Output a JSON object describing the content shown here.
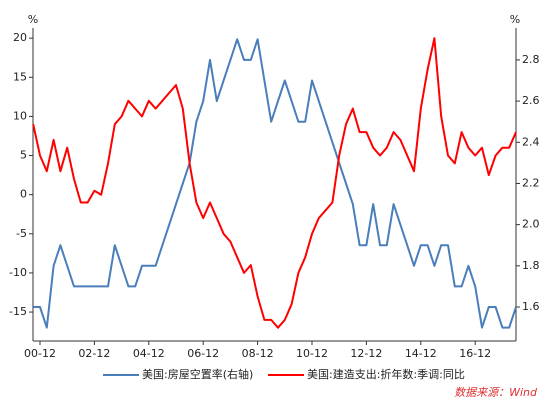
{
  "chart_data": {
    "type": "line",
    "ylabel": "%",
    "y2label": "%",
    "x": [
      "00-09",
      "00-12",
      "01-03",
      "01-06",
      "01-09",
      "01-12",
      "02-03",
      "02-06",
      "02-09",
      "02-12",
      "03-03",
      "03-06",
      "03-09",
      "03-12",
      "04-03",
      "04-06",
      "04-09",
      "04-12",
      "05-03",
      "05-06",
      "05-09",
      "05-12",
      "06-03",
      "06-06",
      "06-09",
      "06-12",
      "07-03",
      "07-06",
      "07-09",
      "07-12",
      "08-03",
      "08-06",
      "08-09",
      "08-12",
      "09-03",
      "09-06",
      "09-09",
      "09-12",
      "10-03",
      "10-06",
      "10-09",
      "10-12",
      "11-03",
      "11-06",
      "11-09",
      "11-12",
      "12-03",
      "12-06",
      "12-09",
      "12-12",
      "13-03",
      "13-06",
      "13-09",
      "13-12",
      "14-03",
      "14-06",
      "14-09",
      "14-12",
      "15-03",
      "15-06",
      "15-09",
      "15-12",
      "16-03",
      "16-06",
      "16-09",
      "16-12",
      "17-03",
      "17-06",
      "17-09",
      "17-12",
      "18-03",
      "18-06"
    ],
    "xticks": [
      "00-12",
      "02-12",
      "04-12",
      "06-12",
      "08-12",
      "10-12",
      "12-12",
      "14-12",
      "16-12"
    ],
    "ylim": [
      -18.7,
      21.3
    ],
    "yticks": [
      -15,
      -10,
      -5,
      0,
      5,
      10,
      15,
      20
    ],
    "y2lim": [
      1.435,
      2.955
    ],
    "y2ticks": [
      1.6,
      1.8,
      {
        "value": 2,
        "label": "2.0"
      },
      2.2,
      2.4,
      2.6,
      2.8
    ],
    "series": [
      {
        "name": "美国:房屋空置率(右轴)",
        "color": "#4a7ebb",
        "axis": "y2",
        "values": [
          1.6,
          1.6,
          1.5,
          1.8,
          1.9,
          1.8,
          1.7,
          1.7,
          1.7,
          1.7,
          1.7,
          1.7,
          1.9,
          1.8,
          1.7,
          1.7,
          1.8,
          1.8,
          1.8,
          1.9,
          2.0,
          2.1,
          2.2,
          2.3,
          2.5,
          2.6,
          2.8,
          2.6,
          2.7,
          2.8,
          2.9,
          2.8,
          2.8,
          2.9,
          2.7,
          2.5,
          2.6,
          2.7,
          2.6,
          2.5,
          2.5,
          2.7,
          2.6,
          2.5,
          2.4,
          2.3,
          2.2,
          2.1,
          1.9,
          1.9,
          2.1,
          1.9,
          1.9,
          2.1,
          2.0,
          1.9,
          1.8,
          1.9,
          1.9,
          1.8,
          1.9,
          1.9,
          1.7,
          1.7,
          1.8,
          1.7,
          1.5,
          1.6,
          1.6,
          1.5,
          1.5,
          1.6
        ]
      },
      {
        "name": "美国:建造支出:折年数:季调:同比",
        "color": "#ff0000",
        "values": [
          9,
          5,
          3,
          7,
          3,
          6,
          2,
          -1,
          -1,
          0.5,
          0,
          4,
          9,
          10,
          12,
          11,
          10,
          12,
          11,
          12,
          13,
          14,
          11,
          4,
          -1,
          -3,
          -1,
          -3,
          -5,
          -6,
          -8,
          -10,
          -9,
          -13,
          -16,
          -16,
          -17,
          -16,
          -14,
          -10,
          -8,
          -5,
          -3,
          -2,
          -1,
          5,
          9,
          11,
          8,
          8,
          6,
          5,
          6,
          8,
          7,
          5,
          3,
          11,
          16,
          20,
          10,
          5,
          4,
          8,
          6,
          5,
          6,
          2.5,
          5,
          6,
          6,
          8
        ]
      }
    ],
    "source": "数据来源：Wind"
  }
}
